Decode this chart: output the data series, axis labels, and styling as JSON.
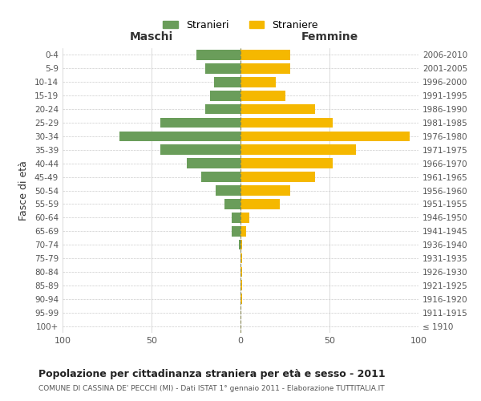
{
  "age_groups": [
    "100+",
    "95-99",
    "90-94",
    "85-89",
    "80-84",
    "75-79",
    "70-74",
    "65-69",
    "60-64",
    "55-59",
    "50-54",
    "45-49",
    "40-44",
    "35-39",
    "30-34",
    "25-29",
    "20-24",
    "15-19",
    "10-14",
    "5-9",
    "0-4"
  ],
  "birth_years": [
    "≤ 1910",
    "1911-1915",
    "1916-1920",
    "1921-1925",
    "1926-1930",
    "1931-1935",
    "1936-1940",
    "1941-1945",
    "1946-1950",
    "1951-1955",
    "1956-1960",
    "1961-1965",
    "1966-1970",
    "1971-1975",
    "1976-1980",
    "1981-1985",
    "1986-1990",
    "1991-1995",
    "1996-2000",
    "2001-2005",
    "2006-2010"
  ],
  "maschi": [
    0,
    0,
    0,
    0,
    0,
    0,
    1,
    5,
    5,
    9,
    14,
    22,
    30,
    45,
    68,
    45,
    20,
    17,
    15,
    20,
    25
  ],
  "femmine": [
    0,
    0,
    1,
    1,
    1,
    1,
    1,
    3,
    5,
    22,
    28,
    42,
    52,
    65,
    95,
    52,
    42,
    25,
    20,
    28,
    28
  ],
  "maschi_color": "#6a9d5a",
  "femmine_color": "#f5b800",
  "title": "Popolazione per cittadinanza straniera per età e sesso - 2011",
  "subtitle": "COMUNE DI CASSINA DE' PECCHI (MI) - Dati ISTAT 1° gennaio 2011 - Elaborazione TUTTITALIA.IT",
  "xlabel_maschi": "Maschi",
  "xlabel_femmine": "Femmine",
  "ylabel_left": "Fasce di età",
  "legend_maschi": "Stranieri",
  "legend_femmine": "Straniere",
  "xlim": 100,
  "background_color": "#ffffff",
  "grid_color": "#cccccc",
  "dashed_line_color": "#888855"
}
